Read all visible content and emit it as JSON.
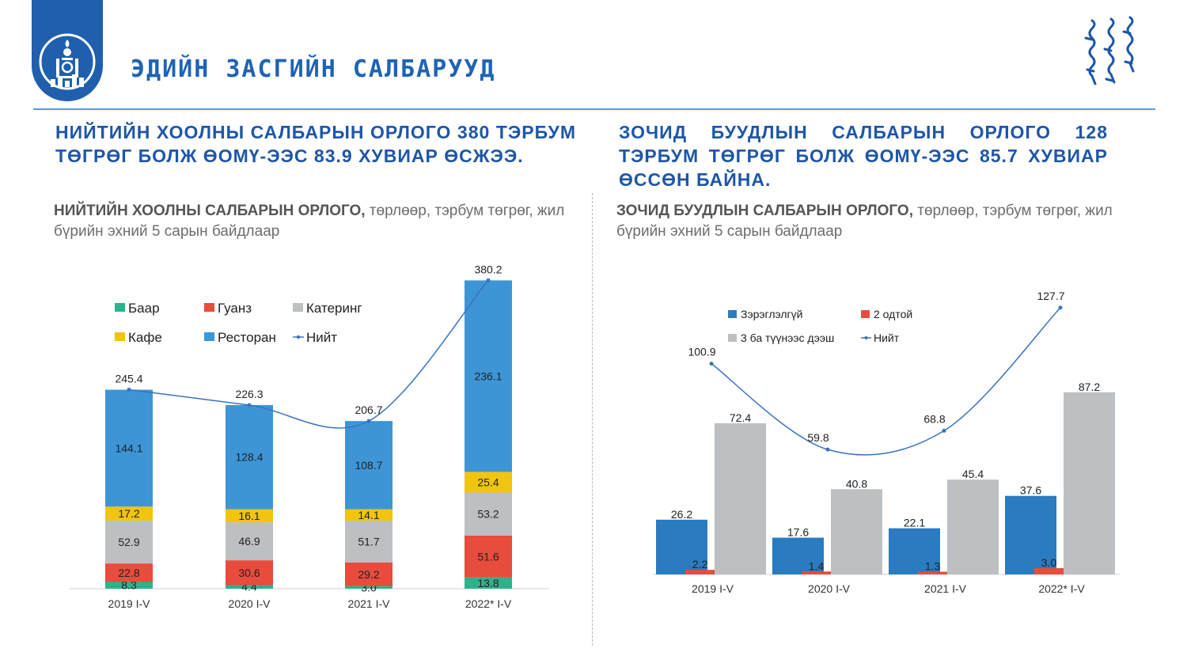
{
  "header": {
    "title": "ЭДИЙН ЗАСГИЙН САЛБАРУУД"
  },
  "left": {
    "headline": "НИЙТИЙН ХООЛНЫ САЛБАРЫН ОРЛОГО 380 ТЭРБУМ ТӨГРӨГ БОЛЖ ӨОМҮ-ЭЭС 83.9 ХУВИАР ӨСЖЭЭ.",
    "subtitle_bold": "НИЙТИЙН ХООЛНЫ САЛБАРЫН ОРЛОГО,",
    "subtitle_rest": " төрлөөр, тэрбум төгрөг, жил бүрийн эхний 5 сарын байдлаар"
  },
  "right": {
    "headline": "ЗОЧИД БУУДЛЫН САЛБАРЫН ОРЛОГО 128 ТЭРБУМ ТӨГРӨГ БОЛЖ ӨОМҮ-ЭЭС 85.7 ХУВИАР ӨССӨН БАЙНА.",
    "subtitle_bold": "ЗОЧИД БУУДЛЫН САЛБАРЫН ОРЛОГО,",
    "subtitle_rest": " төрлөөр, тэрбум төгрөг, жил бүрийн эхний 5 сарын байдлаар"
  },
  "chart_data": [
    {
      "type": "bar",
      "stacked": true,
      "categories": [
        "2019 I-V",
        "2020 I-V",
        "2021 I-V",
        "2022* I-V"
      ],
      "series": [
        {
          "name": "Баар",
          "color": "#2bb48c",
          "values": [
            8.3,
            4.4,
            3.0,
            13.8
          ]
        },
        {
          "name": "Гуанз",
          "color": "#e74c3c",
          "values": [
            22.8,
            30.6,
            29.2,
            51.6
          ]
        },
        {
          "name": "Катеринг",
          "color": "#bdc0c3",
          "values": [
            52.9,
            46.9,
            51.7,
            53.2
          ]
        },
        {
          "name": "Кафе",
          "color": "#f1c40f",
          "values": [
            17.2,
            16.1,
            14.1,
            25.4
          ]
        },
        {
          "name": "Ресторан",
          "color": "#3d95d6",
          "values": [
            144.1,
            128.4,
            108.7,
            236.1
          ]
        }
      ],
      "total": {
        "name": "Нийт",
        "color": "#3a73c2",
        "values": [
          245.4,
          226.3,
          206.7,
          380.2
        ]
      },
      "legend_order": [
        "Баар",
        "Гуанз",
        "Катеринг",
        "Кафе",
        "Ресторан",
        "Нийт"
      ],
      "ylim": [
        0,
        420
      ],
      "grid": false,
      "legend": "top-left"
    },
    {
      "type": "bar",
      "stacked": false,
      "categories": [
        "2019 I-V",
        "2020 I-V",
        "2021 I-V",
        "2022* I-V"
      ],
      "series": [
        {
          "name": "Зэрэглэлгүй",
          "color": "#2a7bc0",
          "values": [
            26.2,
            17.6,
            22.1,
            37.6
          ]
        },
        {
          "name": "2 одтой",
          "color": "#e74c3c",
          "values": [
            2.2,
            1.4,
            1.3,
            3.0
          ]
        },
        {
          "name": "3 ба түүнээс дээш",
          "color": "#bdc0c3",
          "values": [
            72.4,
            40.8,
            45.4,
            87.2
          ]
        }
      ],
      "total": {
        "name": "Нийт",
        "color": "#3a73c2",
        "values": [
          100.9,
          59.8,
          68.8,
          127.7
        ]
      },
      "legend_order": [
        "Зэрэглэлгүй",
        "2 одтой",
        "3 ба түүнээс дээш",
        "Нийт"
      ],
      "ylim": [
        0,
        140
      ],
      "grid": false,
      "legend": "top-left"
    }
  ]
}
